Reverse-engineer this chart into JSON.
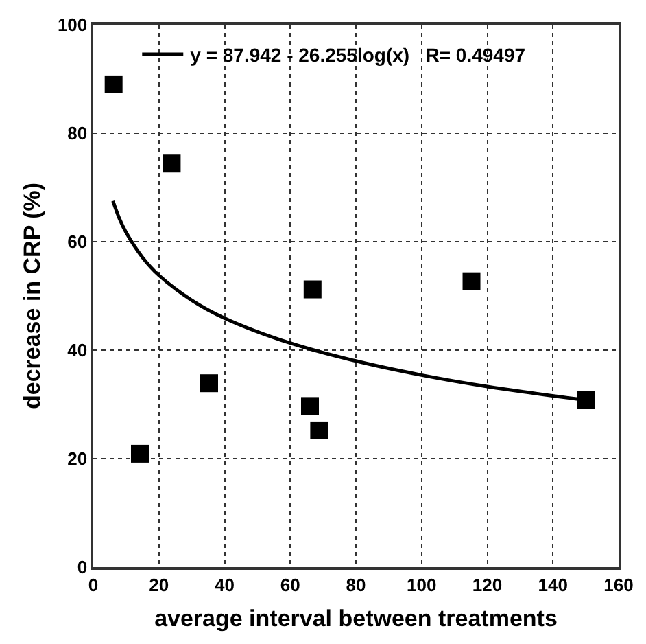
{
  "chart_data": {
    "type": "scatter",
    "xlabel": "average interval between treatments",
    "ylabel": "decrease in CRP (%)",
    "xlim": [
      0,
      160
    ],
    "xticks": [
      0,
      20,
      40,
      60,
      80,
      100,
      120,
      140,
      160
    ],
    "ylim": [
      0,
      100
    ],
    "yticks": [
      0,
      20,
      40,
      60,
      80,
      100
    ],
    "grid": true,
    "legend": "top",
    "marker": "square",
    "series": [
      {
        "color": "#000000",
        "x": [
          6.2,
          23.9,
          66.8,
          115.2,
          14.2,
          35.3,
          66.0,
          68.8,
          150.1
        ],
        "values": [
          89.0,
          74.4,
          51.2,
          52.7,
          20.9,
          33.9,
          29.7,
          25.2,
          30.8
        ]
      },
      {
        "type": "line",
        "name": "y = 87.942 - 26.255log(x)   R= 0.49497",
        "color": "#000000",
        "marker": "none",
        "line_style": "solid",
        "x": [
          6,
          8,
          10,
          15,
          20,
          30,
          40,
          60,
          80,
          100,
          120,
          150
        ],
        "values": [
          67.5,
          64.2,
          61.7,
          57.1,
          53.8,
          49.2,
          45.9,
          41.3,
          38.0,
          35.4,
          33.3,
          30.8
        ]
      }
    ]
  }
}
